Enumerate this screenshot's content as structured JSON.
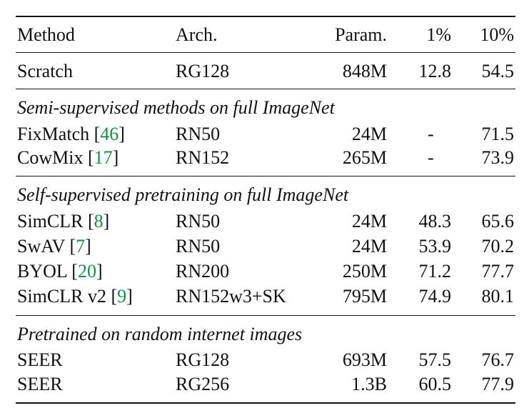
{
  "header": {
    "method": "Method",
    "arch": "Arch.",
    "param": "Param.",
    "p1": "1%",
    "p10": "10%"
  },
  "rows": [
    {
      "method": "Scratch",
      "ref": "",
      "arch": "RG128",
      "param": "848M",
      "p1": "12.8",
      "p10": "54.5"
    }
  ],
  "sections": [
    {
      "title": "Semi-supervised methods on full ImageNet",
      "rows": [
        {
          "method": "FixMatch [",
          "ref": "46",
          "close": "]",
          "arch": "RN50",
          "param": "24M",
          "p1": "-",
          "p10": "71.5"
        },
        {
          "method": "CowMix [",
          "ref": "17",
          "close": "]",
          "arch": "RN152",
          "param": "265M",
          "p1": "-",
          "p10": "73.9"
        }
      ]
    },
    {
      "title": "Self-supervised pretraining on full ImageNet",
      "rows": [
        {
          "method": "SimCLR [",
          "ref": "8",
          "close": "]",
          "arch": "RN50",
          "param": "24M",
          "p1": "48.3",
          "p10": "65.6"
        },
        {
          "method": "SwAV [",
          "ref": "7",
          "close": "]",
          "arch": "RN50",
          "param": "24M",
          "p1": "53.9",
          "p10": "70.2"
        },
        {
          "method": "BYOL [",
          "ref": "20",
          "close": "]",
          "arch": "RN200",
          "param": "250M",
          "p1": "71.2",
          "p10": "77.7"
        },
        {
          "method": "SimCLR v2 [",
          "ref": "9",
          "close": "]",
          "arch": "RN152w3+SK",
          "param": "795M",
          "p1": "74.9",
          "p10": "80.1"
        }
      ]
    },
    {
      "title": "Pretrained on random internet images",
      "rows": [
        {
          "method": "SEER",
          "ref": "",
          "close": "",
          "arch": "RG128",
          "param": "693M",
          "p1": "57.5",
          "p10": "76.7"
        },
        {
          "method": "SEER",
          "ref": "",
          "close": "",
          "arch": "RG256",
          "param": "1.3B",
          "p1": "60.5",
          "p10": "77.9"
        }
      ]
    }
  ],
  "colors": {
    "text": "#111111",
    "reference_link": "#1a8a4a"
  }
}
